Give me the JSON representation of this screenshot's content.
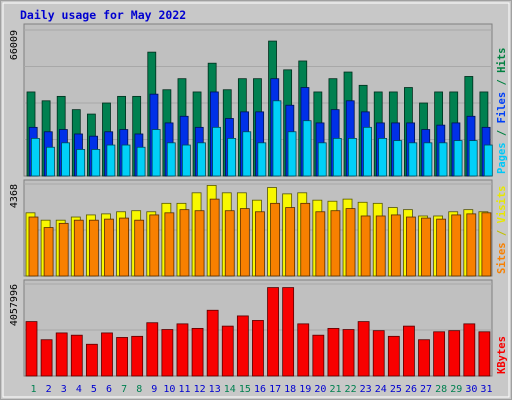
{
  "chart_data": {
    "type": "bar",
    "title": "Daily usage for May 2022",
    "categories": [
      "1",
      "2",
      "3",
      "4",
      "5",
      "6",
      "7",
      "8",
      "9",
      "10",
      "11",
      "12",
      "13",
      "14",
      "15",
      "16",
      "17",
      "18",
      "19",
      "20",
      "21",
      "22",
      "23",
      "24",
      "25",
      "26",
      "27",
      "28",
      "29",
      "30",
      "31"
    ],
    "weekend_days": [
      1,
      7,
      8,
      14,
      15,
      21,
      22,
      28,
      29
    ],
    "panels": [
      {
        "id": "hits-files-pages",
        "ymax": 66009,
        "ymax_label": "66009",
        "right_label_parts": [
          {
            "text": "Pages",
            "color": "#00c8f8"
          },
          {
            "text": " / ",
            "color": "#008040"
          },
          {
            "text": "Files",
            "color": "#0040f8"
          },
          {
            "text": " / ",
            "color": "#008040"
          },
          {
            "text": "Hits",
            "color": "#008040"
          }
        ],
        "series": [
          {
            "name": "Hits",
            "color": "#008050",
            "values": [
              38000,
              34000,
              36000,
              30000,
              28000,
              33000,
              36000,
              36000,
              56000,
              39000,
              44000,
              38000,
              51000,
              39000,
              44000,
              44000,
              61000,
              48000,
              52000,
              38000,
              44000,
              47000,
              41000,
              38000,
              38000,
              40000,
              33000,
              38000,
              38000,
              45000,
              38000
            ]
          },
          {
            "name": "Files",
            "color": "#0030e8",
            "values": [
              22000,
              20000,
              21000,
              19000,
              18000,
              20000,
              21000,
              19000,
              37000,
              24000,
              27000,
              22000,
              38000,
              26000,
              29000,
              29000,
              44000,
              32000,
              40000,
              24000,
              30000,
              34000,
              29000,
              24000,
              24000,
              24000,
              21000,
              23000,
              24000,
              27000,
              22000
            ]
          },
          {
            "name": "Pages",
            "color": "#00d0f8",
            "values": [
              17000,
              13000,
              15000,
              12000,
              12000,
              14000,
              14000,
              13000,
              21000,
              15000,
              14000,
              15000,
              22000,
              17000,
              20000,
              15000,
              34000,
              20000,
              25000,
              15000,
              17000,
              17000,
              22000,
              17000,
              16000,
              15000,
              15000,
              15000,
              16000,
              16000,
              14000
            ]
          }
        ]
      },
      {
        "id": "visits-sites",
        "ymax": 4368,
        "ymax_label": "4368",
        "right_label_parts": [
          {
            "text": "Sites",
            "color": "#f88000"
          },
          {
            "text": " / ",
            "color": "#c0c000"
          },
          {
            "text": "Visits",
            "color": "#e8e800"
          }
        ],
        "series": [
          {
            "name": "Visits",
            "color": "#f8f800",
            "values": [
              3000,
              2650,
              2650,
              2800,
              2900,
              2950,
              3050,
              3100,
              3050,
              3450,
              3450,
              3950,
              4300,
              3950,
              3950,
              3600,
              4200,
              3900,
              3950,
              3600,
              3550,
              3650,
              3500,
              3450,
              3250,
              3150,
              2850,
              2850,
              3050,
              3150,
              3050
            ]
          },
          {
            "name": "Sites",
            "color": "#f88000",
            "values": [
              2800,
              2300,
              2500,
              2650,
              2650,
              2700,
              2750,
              2650,
              2900,
              3000,
              3150,
              3100,
              3650,
              3100,
              3200,
              3050,
              3450,
              3250,
              3450,
              3050,
              3100,
              3200,
              2850,
              2850,
              2900,
              2800,
              2750,
              2700,
              2900,
              2950,
              3000
            ]
          }
        ]
      },
      {
        "id": "kbytes",
        "ymax": 4057996,
        "ymax_label": "4057996",
        "right_label_parts": [
          {
            "text": "KBytes",
            "color": "#f80000"
          }
        ],
        "series": [
          {
            "name": "KBytes",
            "color": "#f80000",
            "values": [
              2400000,
              1600000,
              1900000,
              1800000,
              1400000,
              1900000,
              1700000,
              1750000,
              2350000,
              2050000,
              2300000,
              2100000,
              2900000,
              2200000,
              2650000,
              2450000,
              3900000,
              3900000,
              2300000,
              1800000,
              2100000,
              2050000,
              2400000,
              2000000,
              1750000,
              2200000,
              1600000,
              1950000,
              2000000,
              2300000,
              1950000
            ]
          }
        ]
      }
    ]
  }
}
